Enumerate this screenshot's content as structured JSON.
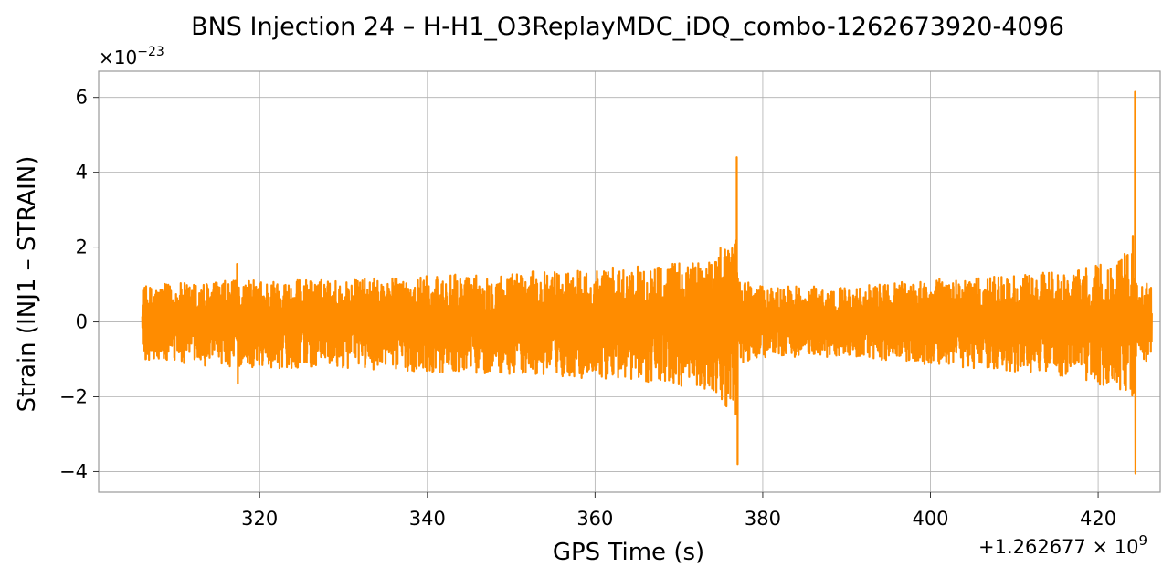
{
  "chart_data": {
    "type": "line",
    "title": "BNS Injection 24 – H-H1_O3ReplayMDC_iDQ_combo-1262673920-4096",
    "xlabel": "GPS Time (s)",
    "ylabel": "Strain (INJ1 – STRAIN)",
    "x_offset_label": "+1.262677 × 10",
    "x_offset_exponent": "9",
    "y_multiplier_label": "×10",
    "y_multiplier_exponent": "−23",
    "xlim": [
      300.8,
      427.4
    ],
    "ylim": [
      -4.55,
      6.7
    ],
    "x_ticks": [
      320,
      340,
      360,
      380,
      400,
      420
    ],
    "x_tick_labels": [
      "320",
      "340",
      "360",
      "380",
      "400",
      "420"
    ],
    "y_ticks": [
      -4,
      -2,
      0,
      2,
      4,
      6
    ],
    "y_tick_labels": [
      "−4",
      "−2",
      "0",
      "2",
      "4",
      "6"
    ],
    "grid": true,
    "series": [
      {
        "color": "#ff8c00",
        "x_start": 306.0,
        "x_end": 426.4,
        "envelope": [
          [
            306.0,
            1.0,
            -1.1
          ],
          [
            310.0,
            1.1,
            -1.2
          ],
          [
            320.0,
            1.2,
            -1.3
          ],
          [
            330.0,
            1.2,
            -1.3
          ],
          [
            340.0,
            1.3,
            -1.4
          ],
          [
            350.0,
            1.4,
            -1.5
          ],
          [
            360.0,
            1.5,
            -1.6
          ],
          [
            366.0,
            1.6,
            -1.7
          ],
          [
            370.0,
            1.7,
            -1.8
          ],
          [
            374.0,
            1.9,
            -2.1
          ],
          [
            376.0,
            2.3,
            -2.6
          ],
          [
            376.8,
            2.8,
            -3.2
          ],
          [
            377.1,
            1.2,
            -1.2
          ],
          [
            380.0,
            1.0,
            -1.0
          ],
          [
            390.0,
            1.0,
            -1.0
          ],
          [
            400.0,
            1.2,
            -1.2
          ],
          [
            410.0,
            1.3,
            -1.4
          ],
          [
            418.0,
            1.5,
            -1.6
          ],
          [
            422.0,
            1.7,
            -1.9
          ],
          [
            423.8,
            2.1,
            -2.4
          ],
          [
            424.2,
            2.8,
            -3.0
          ],
          [
            424.5,
            1.1,
            -1.1
          ],
          [
            426.4,
            1.1,
            -1.1
          ]
        ],
        "peaks": [
          {
            "x": 317.3,
            "y": 1.55
          },
          {
            "x": 317.4,
            "y": -1.65
          },
          {
            "x": 376.9,
            "y": 4.4
          },
          {
            "x": 377.0,
            "y": -3.8
          },
          {
            "x": 424.4,
            "y": 6.15
          },
          {
            "x": 424.45,
            "y": -4.05
          }
        ]
      }
    ]
  }
}
